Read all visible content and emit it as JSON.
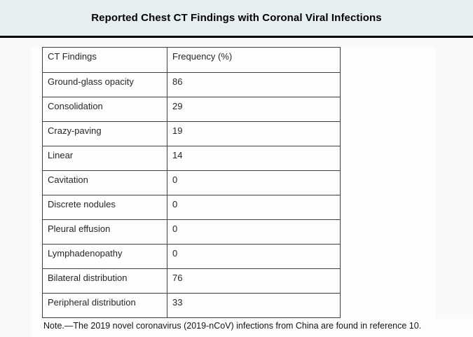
{
  "header": {
    "title": "Reported Chest CT Findings with Coronal Viral Infections"
  },
  "table": {
    "columns": [
      "CT Findings",
      "Frequency (%)"
    ],
    "rows": [
      {
        "finding": "Ground-glass opacity",
        "frequency": "86"
      },
      {
        "finding": "Consolidation",
        "frequency": "29"
      },
      {
        "finding": "Crazy-paving",
        "frequency": "19"
      },
      {
        "finding": "Linear",
        "frequency": "14"
      },
      {
        "finding": "Cavitation",
        "frequency": "0"
      },
      {
        "finding": "Discrete nodules",
        "frequency": "0"
      },
      {
        "finding": "Pleural effusion",
        "frequency": "0"
      },
      {
        "finding": "Lymphadenopathy",
        "frequency": "0"
      },
      {
        "finding": "Bilateral distribution",
        "frequency": "76"
      },
      {
        "finding": "Peripheral distribution",
        "frequency": "33"
      }
    ]
  },
  "note": "Note.—The 2019 novel coronavirus (2019-nCoV) infections from China are found in reference 10.",
  "colors": {
    "band_background": "#e7eef0",
    "page_background": "#f9f9f9",
    "document_background": "#fdfdfd",
    "rule": "#000000",
    "table_border": "#3f3f3f",
    "text": "#262626"
  }
}
